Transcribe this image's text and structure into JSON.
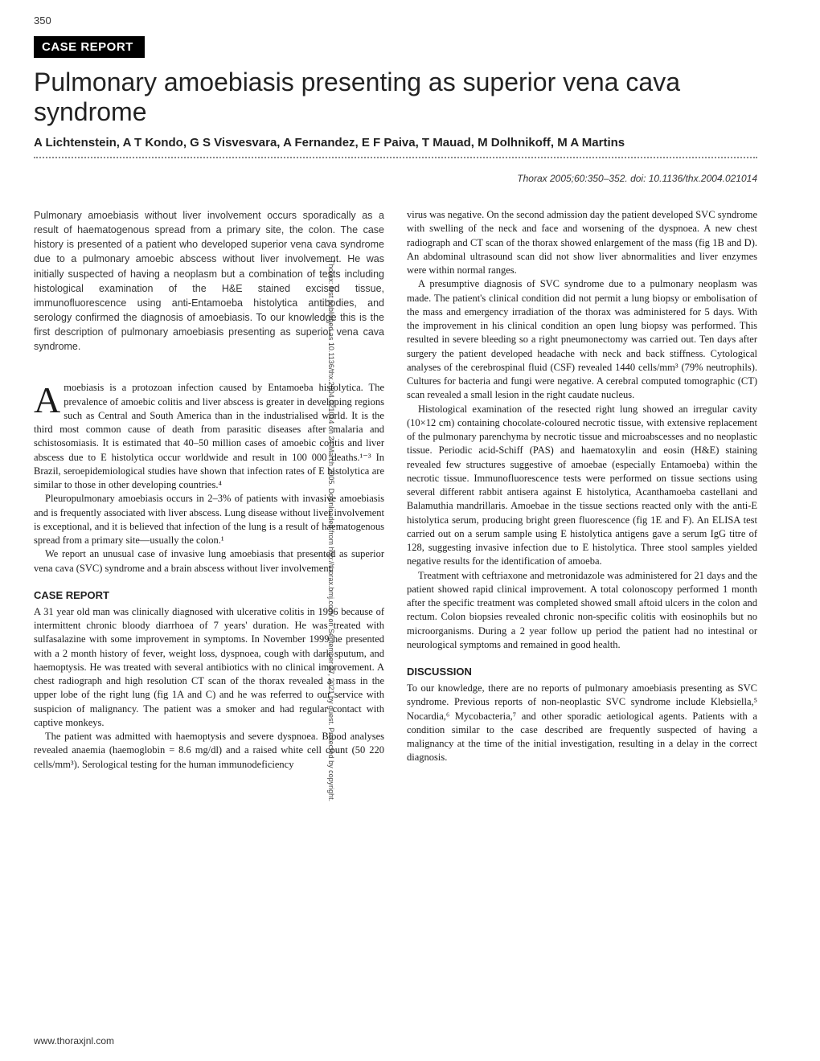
{
  "page_number": "350",
  "sidebar": "Thorax: first published as 10.1136/thx.2004.021014 on 24 March 2005. Downloaded from http://thorax.bmj.com/ on September 27, 2021 by guest. Protected by copyright.",
  "section_label": "CASE REPORT",
  "title": "Pulmonary amoebiasis presenting as superior vena cava syndrome",
  "authors": "A Lichtenstein, A T Kondo, G S Visvesvara, A Fernandez, E F Paiva, T Mauad, M Dolhnikoff, M A Martins",
  "citation": "Thorax 2005;60:350–352. doi: 10.1136/thx.2004.021014",
  "abstract": "Pulmonary amoebiasis without liver involvement occurs sporadically as a result of haematogenous spread from a primary site, the colon. The case history is presented of a patient who developed superior vena cava syndrome due to a pulmonary amoebic abscess without liver involvement. He was initially suspected of having a neoplasm but a combination of tests including histological examination of the H&E stained excised tissue, immunofluorescence using anti-Entamoeba histolytica antibodies, and serology confirmed the diagnosis of amoebiasis. To our knowledge this is the first description of pulmonary amoebiasis presenting as superior vena cava syndrome.",
  "intro_p1": "moebiasis is a protozoan infection caused by Entamoeba histolytica. The prevalence of amoebic colitis and liver abscess is greater in developing regions such as Central and South America than in the industrialised world. It is the third most common cause of death from parasitic diseases after malaria and schistosomiasis. It is estimated that 40–50 million cases of amoebic colitis and liver abscess due to E histolytica occur worldwide and result in 100 000 deaths.¹⁻³ In Brazil, seroepidemiological studies have shown that infection rates of E histolytica are similar to those in other developing countries.⁴",
  "intro_p2": "Pleuropulmonary amoebiasis occurs in 2–3% of patients with invasive amoebiasis and is frequently associated with liver abscess. Lung disease without liver involvement is exceptional, and it is believed that infection of the lung is a result of haematogenous spread from a primary site—usually the colon.¹",
  "intro_p3": "We report an unusual case of invasive lung amoebiasis that presented as superior vena cava (SVC) syndrome and a brain abscess without liver involvement.",
  "case_head": "CASE REPORT",
  "case_p1": "A 31 year old man was clinically diagnosed with ulcerative colitis in 1996 because of intermittent chronic bloody diarrhoea of 7 years' duration. He was treated with sulfasalazine with some improvement in symptoms. In November 1999 he presented with a 2 month history of fever, weight loss, dyspnoea, cough with dark sputum, and haemoptysis. He was treated with several antibiotics with no clinical improvement. A chest radiograph and high resolution CT scan of the thorax revealed a mass in the upper lobe of the right lung (fig 1A and C) and he was referred to our service with suspicion of malignancy. The patient was a smoker and had regular contact with captive monkeys.",
  "case_p2": "The patient was admitted with haemoptysis and severe dyspnoea. Blood analyses revealed anaemia (haemoglobin = 8.6 mg/dl) and a raised white cell count (50 220 cells/mm³). Serological testing for the human immunodeficiency",
  "col2_p1": "virus was negative. On the second admission day the patient developed SVC syndrome with swelling of the neck and face and worsening of the dyspnoea. A new chest radiograph and CT scan of the thorax showed enlargement of the mass (fig 1B and D). An abdominal ultrasound scan did not show liver abnormalities and liver enzymes were within normal ranges.",
  "col2_p2": "A presumptive diagnosis of SVC syndrome due to a pulmonary neoplasm was made. The patient's clinical condition did not permit a lung biopsy or embolisation of the mass and emergency irradiation of the thorax was administered for 5 days. With the improvement in his clinical condition an open lung biopsy was performed. This resulted in severe bleeding so a right pneumonectomy was carried out. Ten days after surgery the patient developed headache with neck and back stiffness. Cytological analyses of the cerebrospinal fluid (CSF) revealed 1440 cells/mm³ (79% neutrophils). Cultures for bacteria and fungi were negative. A cerebral computed tomographic (CT) scan revealed a small lesion in the right caudate nucleus.",
  "col2_p3": "Histological examination of the resected right lung showed an irregular cavity (10×12 cm) containing chocolate-coloured necrotic tissue, with extensive replacement of the pulmonary parenchyma by necrotic tissue and microabscesses and no neoplastic tissue. Periodic acid-Schiff (PAS) and haematoxylin and eosin (H&E) staining revealed few structures suggestive of amoebae (especially Entamoeba) within the necrotic tissue. Immunofluorescence tests were performed on tissue sections using several different rabbit antisera against E histolytica, Acanthamoeba castellani and Balamuthia mandrillaris. Amoebae in the tissue sections reacted only with the anti-E histolytica serum, producing bright green fluorescence (fig 1E and F). An ELISA test carried out on a serum sample using E histolytica antigens gave a serum IgG titre of 128, suggesting invasive infection due to E histolytica. Three stool samples yielded negative results for the identification of amoeba.",
  "col2_p4": "Treatment with ceftriaxone and metronidazole was administered for 21 days and the patient showed rapid clinical improvement. A total colonoscopy performed 1 month after the specific treatment was completed showed small aftoid ulcers in the colon and rectum. Colon biopsies revealed chronic non-specific colitis with eosinophils but no microorganisms. During a 2 year follow up period the patient had no intestinal or neurological symptoms and remained in good health.",
  "disc_head": "DISCUSSION",
  "disc_p1": "To our knowledge, there are no reports of pulmonary amoebiasis presenting as SVC syndrome. Previous reports of non-neoplastic SVC syndrome include Klebsiella,⁵ Nocardia,⁶ Mycobacteria,⁷ and other sporadic aetiological agents. Patients with a condition similar to the case described are frequently suspected of having a malignancy at the time of the initial investigation, resulting in a delay in the correct diagnosis.",
  "footer_url": "www.thoraxjnl.com"
}
